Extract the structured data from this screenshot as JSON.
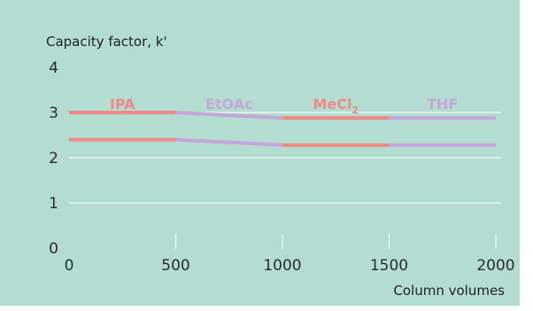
{
  "chart_data": {
    "type": "line",
    "title": "",
    "ylabel": "Capacity factor, k'",
    "xlabel": "Column volumes",
    "xlim": [
      0,
      2000
    ],
    "ylim": [
      0,
      4
    ],
    "xticks": [
      0,
      500,
      1000,
      1500,
      2000
    ],
    "yticks": [
      0,
      1,
      2,
      3,
      4
    ],
    "grid": "horizontal",
    "colors": {
      "background": "#b3ddd0",
      "solvent_a": "#f08a88",
      "solvent_b": "#c4a7d8",
      "grid": "#eef8f4"
    },
    "segments": [
      {
        "label": "IPA",
        "label_sub": "",
        "label_suffix": "",
        "x": [
          0,
          500
        ],
        "color": "#f08a88"
      },
      {
        "label": "EtOAc",
        "label_sub": "",
        "label_suffix": "",
        "x": [
          500,
          1000
        ],
        "color": "#c4a7d8"
      },
      {
        "label": "MeCl",
        "label_sub": "2",
        "label_suffix": "",
        "x": [
          1000,
          1500
        ],
        "color": "#f08a88"
      },
      {
        "label": "THF",
        "label_sub": "",
        "label_suffix": "",
        "x": [
          1500,
          2000
        ],
        "color": "#c4a7d8"
      }
    ],
    "series": [
      {
        "x": [
          0,
          500,
          1000,
          1500,
          2000
        ],
        "y": [
          3.0,
          3.0,
          2.88,
          2.88,
          2.88
        ]
      },
      {
        "x": [
          0,
          500,
          1000,
          1500,
          2000
        ],
        "y": [
          2.4,
          2.4,
          2.28,
          2.28,
          2.28
        ]
      }
    ]
  }
}
